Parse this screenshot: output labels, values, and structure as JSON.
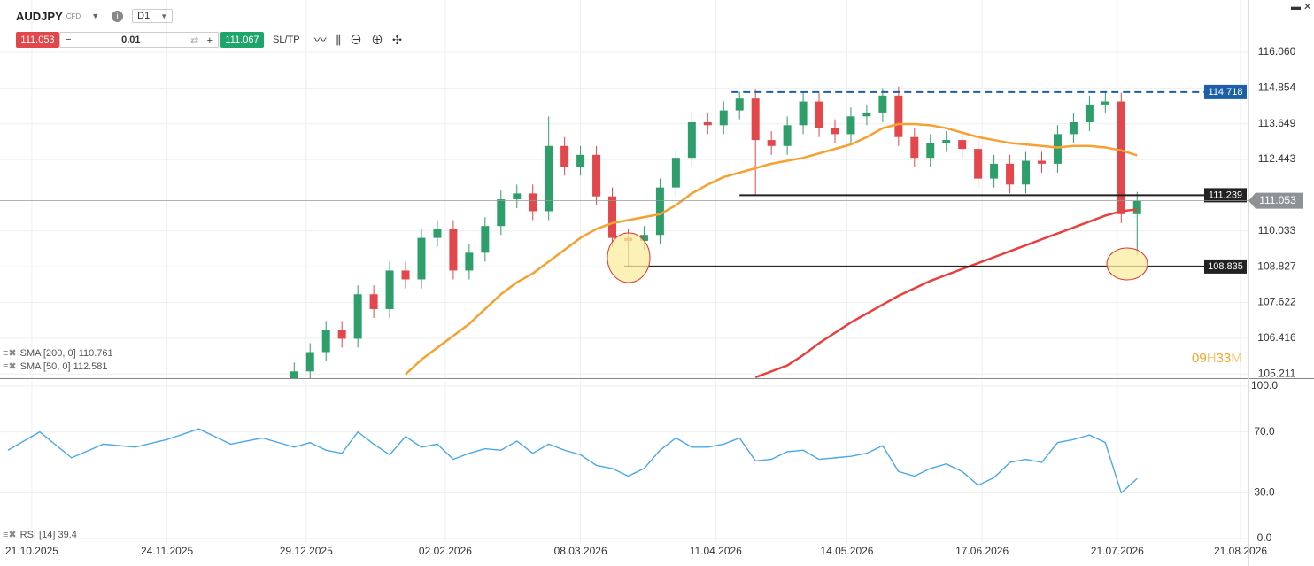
{
  "toolbar": {
    "symbol": "AUDJPY",
    "instrument_type": "CFD",
    "timeframe": "D1",
    "sell_price": "111.053",
    "lot": "0.01",
    "buy_price": "111.067",
    "sltp": "SL/TP"
  },
  "timer": {
    "hours": "09",
    "h": "H",
    "minutes": "33",
    "m": "M"
  },
  "chart_data": [
    {
      "type": "candlestick",
      "x": [
        "26.12.2025",
        "30.12.2025",
        "03.01.2026",
        "07.01.2026",
        "11.01.2026",
        "15.01.2026",
        "19.01.2026",
        "23.01.2026",
        "27.01.2026",
        "31.01.2026",
        "04.02.2026",
        "08.02.2026",
        "12.02.2026",
        "16.02.2026",
        "20.02.2026",
        "24.02.2026",
        "28.02.2026",
        "04.03.2026",
        "08.03.2026",
        "12.03.2026",
        "16.03.2026",
        "20.03.2026",
        "24.03.2026",
        "28.03.2026",
        "01.04.2026",
        "05.04.2026",
        "09.04.2026",
        "13.04.2026",
        "17.04.2026",
        "21.04.2026",
        "25.04.2026",
        "29.04.2026",
        "03.05.2026",
        "07.05.2026",
        "11.05.2026",
        "15.05.2026",
        "19.05.2026",
        "23.05.2026",
        "27.05.2026",
        "31.05.2026",
        "04.06.2026",
        "08.06.2026",
        "12.06.2026",
        "16.06.2026",
        "20.06.2026",
        "24.06.2026",
        "28.06.2026",
        "02.07.2026",
        "06.07.2026",
        "10.07.2026",
        "14.07.2026",
        "18.07.2026",
        "22.07.2026",
        "26.07.2026"
      ],
      "open": [
        105.0,
        105.3,
        105.95,
        106.7,
        106.4,
        107.9,
        107.4,
        108.7,
        108.4,
        109.8,
        110.1,
        108.7,
        109.3,
        110.2,
        111.1,
        111.3,
        110.7,
        112.9,
        112.2,
        112.6,
        111.2,
        109.8,
        109.7,
        109.9,
        111.5,
        112.5,
        113.7,
        113.6,
        114.1,
        114.5,
        113.1,
        112.9,
        113.6,
        114.4,
        113.5,
        113.3,
        113.9,
        114.0,
        114.6,
        113.2,
        112.5,
        113.0,
        113.1,
        112.8,
        111.8,
        112.3,
        111.6,
        112.4,
        112.3,
        113.3,
        113.7,
        114.3,
        114.4,
        110.6
      ],
      "high": [
        105.6,
        106.25,
        107.0,
        107.0,
        108.2,
        108.2,
        109.0,
        109.0,
        110.1,
        110.4,
        110.4,
        109.6,
        110.5,
        111.4,
        111.6,
        111.6,
        113.9,
        113.2,
        112.9,
        112.9,
        111.5,
        110.1,
        110.2,
        111.8,
        112.8,
        114.0,
        114.0,
        114.4,
        114.72,
        114.8,
        113.4,
        113.9,
        114.7,
        114.7,
        113.8,
        114.2,
        114.3,
        114.85,
        114.9,
        113.5,
        113.3,
        113.4,
        113.4,
        113.1,
        112.6,
        112.6,
        112.7,
        112.7,
        113.6,
        114.0,
        114.6,
        114.7,
        114.7,
        111.35
      ],
      "low": [
        104.7,
        105.0,
        105.65,
        106.1,
        106.1,
        107.1,
        107.1,
        108.1,
        108.1,
        109.5,
        108.4,
        108.4,
        109.0,
        109.9,
        110.8,
        110.4,
        110.4,
        111.9,
        111.9,
        110.9,
        109.5,
        108.84,
        109.4,
        109.6,
        111.2,
        112.2,
        113.3,
        113.3,
        113.8,
        111.25,
        112.6,
        112.6,
        113.3,
        113.2,
        113.0,
        113.0,
        113.6,
        113.7,
        112.9,
        112.2,
        112.2,
        112.7,
        112.5,
        111.5,
        111.5,
        111.3,
        111.3,
        112.0,
        112.0,
        113.0,
        113.4,
        114.0,
        110.3,
        109.2
      ],
      "close": [
        105.3,
        105.95,
        106.7,
        106.4,
        107.9,
        107.4,
        108.7,
        108.4,
        109.8,
        110.1,
        108.7,
        109.3,
        110.2,
        111.1,
        111.3,
        110.7,
        112.9,
        112.2,
        112.6,
        111.2,
        109.8,
        109.7,
        109.9,
        111.5,
        112.5,
        113.7,
        113.6,
        114.1,
        114.5,
        113.1,
        112.9,
        113.6,
        114.4,
        113.5,
        113.3,
        113.9,
        114.0,
        114.6,
        113.2,
        112.5,
        113.0,
        113.1,
        112.8,
        111.8,
        112.3,
        111.6,
        112.4,
        112.3,
        113.3,
        113.7,
        114.3,
        114.4,
        110.6,
        111.05
      ],
      "up_color": "#2e9e6a",
      "down_color": "#e2474c",
      "series": [
        {
          "name": "SMA [200, 0]",
          "color": "#e8413d",
          "legend_value": 110.761,
          "values": [
            null,
            null,
            null,
            null,
            null,
            null,
            null,
            null,
            null,
            null,
            null,
            null,
            null,
            null,
            null,
            null,
            null,
            null,
            null,
            null,
            null,
            null,
            null,
            null,
            null,
            null,
            null,
            null,
            null,
            105.1,
            105.3,
            105.5,
            105.85,
            106.25,
            106.6,
            106.95,
            107.25,
            107.55,
            107.85,
            108.1,
            108.35,
            108.55,
            108.75,
            108.95,
            109.15,
            109.35,
            109.55,
            109.75,
            109.95,
            110.15,
            110.35,
            110.55,
            110.7,
            110.76
          ]
        },
        {
          "name": "SMA [50, 0]",
          "color": "#f7a030",
          "legend_value": 112.581,
          "values": [
            null,
            null,
            null,
            null,
            null,
            null,
            null,
            105.2,
            105.7,
            106.1,
            106.5,
            106.9,
            107.4,
            107.9,
            108.3,
            108.6,
            109.0,
            109.4,
            109.8,
            110.1,
            110.3,
            110.4,
            110.5,
            110.6,
            110.9,
            111.3,
            111.6,
            111.85,
            112.0,
            112.15,
            112.3,
            112.4,
            112.5,
            112.65,
            112.8,
            112.95,
            113.2,
            113.5,
            113.64,
            113.64,
            113.6,
            113.5,
            113.35,
            113.2,
            113.1,
            113.0,
            112.95,
            112.9,
            112.85,
            112.9,
            112.9,
            112.85,
            112.75,
            112.58
          ]
        }
      ],
      "levels": [
        {
          "value": 114.718,
          "start": "15.04.2026",
          "color": "#1d5fa8",
          "dash": true
        },
        {
          "value": 111.239,
          "start": "17.04.2026",
          "color": "#222222",
          "dash": false
        },
        {
          "value": 108.835,
          "start": "19.03.2026",
          "color": "#222222",
          "dash": false
        }
      ],
      "current_price": 111.053,
      "xlim": [
        "13.10.2025",
        "23.08.2026"
      ],
      "xticks": [
        "21.10.2025",
        "24.11.2025",
        "29.12.2025",
        "02.02.2026",
        "08.03.2026",
        "11.04.2026",
        "14.05.2026",
        "17.06.2026",
        "21.07.2026",
        "21.08.2026"
      ],
      "ylim": [
        105.07,
        117.82
      ],
      "yticks": [
        {
          "value": 116.06,
          "label": "116.060"
        },
        114.854,
        113.649,
        112.443,
        110.033,
        108.827,
        107.622,
        106.416,
        105.211
      ],
      "grid": true
    },
    {
      "type": "line",
      "x": [
        "15.10.2025",
        "23.10.2025",
        "31.10.2025",
        "08.11.2025",
        "16.11.2025",
        "24.11.2025",
        "02.12.2025",
        "10.12.2025",
        "18.12.2025",
        "26.12.2025",
        "30.12.2025",
        "03.01.2026",
        "07.01.2026",
        "11.01.2026",
        "15.01.2026",
        "19.01.2026",
        "23.01.2026",
        "27.01.2026",
        "31.01.2026",
        "04.02.2026",
        "08.02.2026",
        "12.02.2026",
        "16.02.2026",
        "20.02.2026",
        "24.02.2026",
        "28.02.2026",
        "04.03.2026",
        "08.03.2026",
        "12.03.2026",
        "16.03.2026",
        "20.03.2026",
        "24.03.2026",
        "28.03.2026",
        "01.04.2026",
        "05.04.2026",
        "09.04.2026",
        "13.04.2026",
        "17.04.2026",
        "21.04.2026",
        "25.04.2026",
        "29.04.2026",
        "03.05.2026",
        "07.05.2026",
        "11.05.2026",
        "15.05.2026",
        "19.05.2026",
        "23.05.2026",
        "27.05.2026",
        "31.05.2026",
        "04.06.2026",
        "08.06.2026",
        "12.06.2026",
        "16.06.2026",
        "20.06.2026",
        "24.06.2026",
        "28.06.2026",
        "02.07.2026",
        "06.07.2026",
        "10.07.2026",
        "14.07.2026",
        "18.07.2026",
        "22.07.2026",
        "26.07.2026"
      ],
      "series": [
        {
          "name": "RSI [14]",
          "color": "#4aa8e8",
          "legend_value": 39.4,
          "values": [
            58,
            70,
            53,
            62,
            60,
            65,
            72,
            62,
            66,
            60,
            63,
            58,
            56,
            70,
            62,
            55,
            67,
            60,
            62,
            52,
            56,
            59,
            58,
            64,
            56,
            62,
            58,
            55,
            48,
            46,
            41,
            46,
            58,
            66,
            60,
            60,
            62,
            66,
            51,
            52,
            57,
            58,
            52,
            53,
            54,
            56,
            61,
            44,
            41,
            46,
            49,
            44,
            35,
            40,
            50,
            52,
            50,
            63,
            65,
            68,
            63,
            30,
            39.4
          ]
        }
      ],
      "xlim": [
        "13.10.2025",
        "23.08.2026"
      ],
      "xticks": [
        "21.10.2025",
        "24.11.2025",
        "29.12.2025",
        "02.02.2026",
        "08.03.2026",
        "11.04.2026",
        "14.05.2026",
        "17.06.2026",
        "21.07.2026",
        "21.08.2026"
      ],
      "ylim": [
        -2.3,
        103.5
      ],
      "yticks": [
        {
          "value": 100,
          "label": "100.0"
        },
        {
          "value": 70,
          "label": "70.0"
        },
        {
          "value": 30,
          "label": "30.0"
        },
        {
          "value": 0,
          "label": "0.0"
        }
      ],
      "grid": true
    }
  ]
}
